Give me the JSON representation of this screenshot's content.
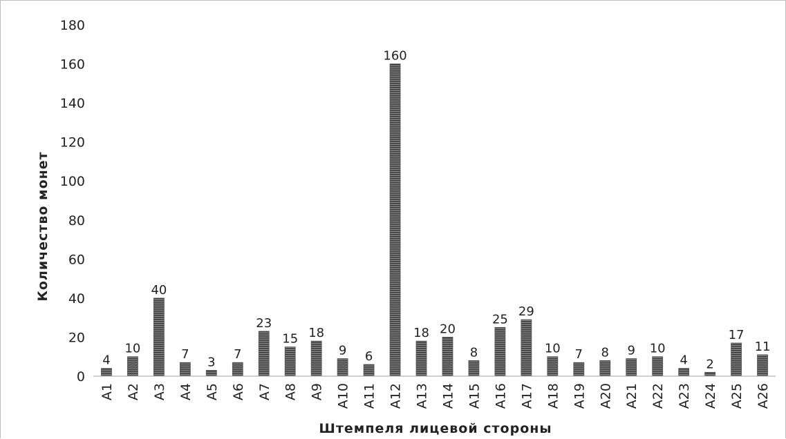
{
  "chart_data": {
    "type": "bar",
    "title": "",
    "xlabel": "Штемпеля лицевой стороны",
    "ylabel": "Количество монет",
    "ylim": [
      0,
      180
    ],
    "yticks": [
      0,
      20,
      40,
      60,
      80,
      100,
      120,
      140,
      160,
      180
    ],
    "grid": false,
    "legend": "none",
    "bar_color": "#555555",
    "categories": [
      "A1",
      "A2",
      "A3",
      "A4",
      "A5",
      "A6",
      "A7",
      "A8",
      "A9",
      "A10",
      "A11",
      "A12",
      "A13",
      "A14",
      "A15",
      "A16",
      "A17",
      "A18",
      "A19",
      "A20",
      "A21",
      "A22",
      "A23",
      "A24",
      "A25",
      "A26"
    ],
    "values": [
      4,
      10,
      40,
      7,
      3,
      7,
      23,
      15,
      18,
      9,
      6,
      160,
      18,
      20,
      8,
      25,
      29,
      10,
      7,
      8,
      9,
      10,
      4,
      2,
      17,
      11
    ]
  }
}
